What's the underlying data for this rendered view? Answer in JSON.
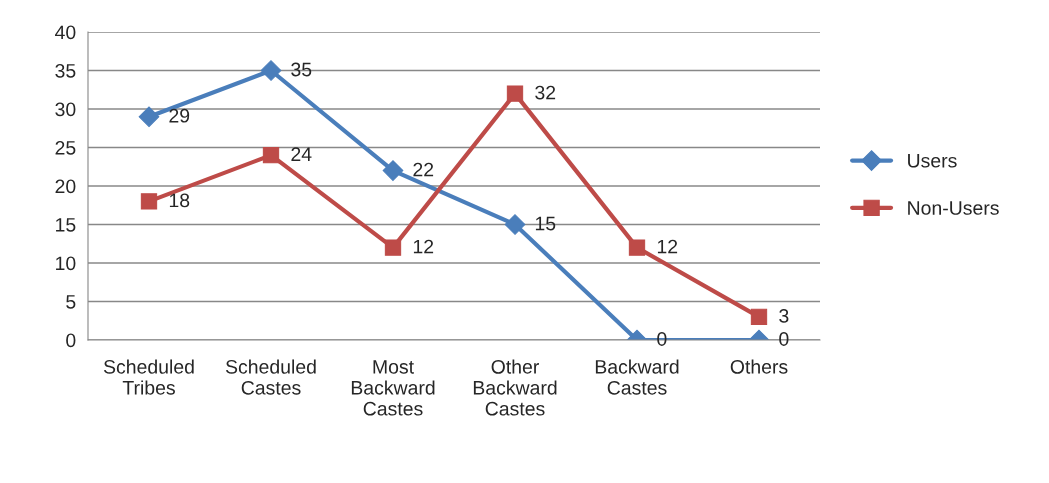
{
  "chart_data": {
    "type": "line",
    "categories": [
      "Scheduled\nTribes",
      "Scheduled\nCastes",
      "Most\nBackward\nCastes",
      "Other\nBackward\nCastes",
      "Backward\nCastes",
      "Others"
    ],
    "series": [
      {
        "name": "Users",
        "color": "#4a7ebb",
        "marker": "diamond",
        "values": [
          29,
          35,
          22,
          15,
          0,
          0
        ]
      },
      {
        "name": "Non-Users",
        "color": "#be4b48",
        "marker": "square",
        "values": [
          18,
          24,
          12,
          32,
          12,
          3
        ]
      }
    ],
    "ylim": [
      0,
      40
    ],
    "yticks": [
      0,
      5,
      10,
      15,
      20,
      25,
      30,
      35,
      40
    ],
    "grid": "y",
    "legend": "right",
    "data_labels": true
  }
}
